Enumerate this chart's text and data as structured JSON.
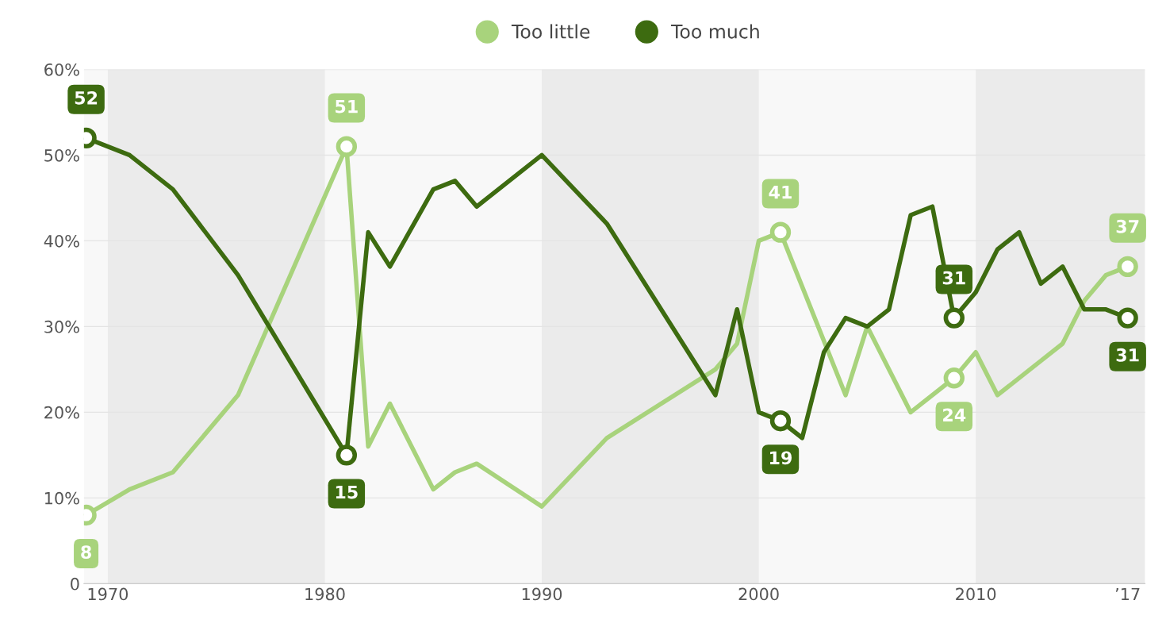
{
  "chart_data": {
    "type": "line",
    "legend": "top",
    "grid": "y",
    "xlim": [
      1968.9,
      2017.8
    ],
    "ylim": [
      0,
      60
    ],
    "xticks": [
      1970,
      1980,
      1990,
      2000,
      2010,
      {
        "value": 2017,
        "label": "’17"
      }
    ],
    "yticks": [
      {
        "value": 0,
        "label": "0"
      },
      {
        "value": 10,
        "label": "10%"
      },
      {
        "value": 20,
        "label": "20%"
      },
      {
        "value": 30,
        "label": "30%"
      },
      {
        "value": 40,
        "label": "40%"
      },
      {
        "value": 50,
        "label": "50%"
      },
      {
        "value": 60,
        "label": "60%"
      }
    ],
    "bands": [
      {
        "axis": "x",
        "from": 1970,
        "to": 1980,
        "color": "#ebebeb"
      },
      {
        "axis": "x",
        "from": 1990,
        "to": 2000,
        "color": "#ebebeb"
      },
      {
        "axis": "x",
        "from": 2010,
        "to": 2017.8,
        "color": "#ebebeb"
      }
    ],
    "series": [
      {
        "name": "Too little",
        "color": "#a8d37c",
        "x": [
          1969,
          1971,
          1973,
          1976,
          1981,
          1982,
          1983,
          1985,
          1986,
          1987,
          1990,
          1993,
          1998,
          1999,
          2000,
          2001,
          2004,
          2005,
          2007,
          2009,
          2010,
          2011,
          2013,
          2014,
          2015,
          2016,
          2017
        ],
        "values": [
          8,
          11,
          13,
          22,
          51,
          16,
          21,
          11,
          13,
          14,
          9,
          17,
          25,
          28,
          40,
          41,
          22,
          30,
          20,
          24,
          27,
          22,
          26,
          28,
          33,
          36,
          37
        ],
        "value_labels": [
          "8",
          null,
          null,
          null,
          "51",
          null,
          null,
          null,
          null,
          null,
          null,
          null,
          null,
          null,
          null,
          "41",
          null,
          null,
          null,
          "24",
          null,
          null,
          null,
          null,
          null,
          null,
          "37"
        ]
      },
      {
        "name": "Too much",
        "color": "#3d6b10",
        "x": [
          1969,
          1971,
          1973,
          1976,
          1981,
          1982,
          1983,
          1985,
          1986,
          1987,
          1990,
          1993,
          1998,
          1999,
          2000,
          2001,
          2002,
          2003,
          2004,
          2005,
          2006,
          2007,
          2008,
          2009,
          2010,
          2011,
          2012,
          2013,
          2014,
          2015,
          2016,
          2017
        ],
        "values": [
          52,
          50,
          46,
          36,
          15,
          41,
          37,
          46,
          47,
          44,
          50,
          42,
          22,
          32,
          20,
          19,
          17,
          27,
          31,
          30,
          32,
          43,
          44,
          31,
          34,
          39,
          41,
          35,
          37,
          32,
          32,
          31
        ],
        "value_labels": [
          "52",
          null,
          null,
          null,
          "15",
          null,
          null,
          null,
          null,
          null,
          null,
          null,
          null,
          null,
          null,
          "19",
          null,
          null,
          null,
          null,
          null,
          null,
          null,
          "31",
          null,
          null,
          null,
          null,
          null,
          null,
          null,
          "31"
        ]
      }
    ]
  }
}
